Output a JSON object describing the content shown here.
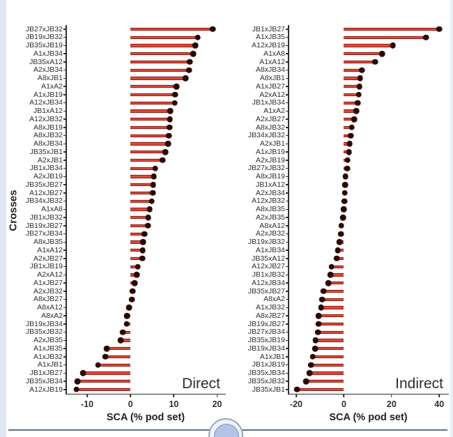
{
  "figure": {
    "ylabel": "Crosses",
    "colors": {
      "stem_red": "#dd4a3a",
      "stem_edge": "#8d1d13",
      "dot": "#1e0c0a",
      "axis": "#2e2e2e",
      "page_edge_blue": "#dfe9f4",
      "badge_fill": "#b3c3e6"
    }
  },
  "chart_data": [
    {
      "type": "bar",
      "variant": "lollipop-horizontal",
      "panel_label": "Direct",
      "xlabel": "SCA (% pod set)",
      "ylabel": "Crosses",
      "xlim": [
        -15,
        22
      ],
      "xticks": [
        -10,
        0,
        10,
        20
      ],
      "grid": false,
      "categories": [
        "JB27xJB32",
        "JB19xJB32",
        "JB35xJB19",
        "A1xJB34",
        "JB35xA12",
        "A2xJB34",
        "A8xJB1",
        "A1xA2",
        "A1xJB19",
        "A12xJB34",
        "JB1xA12",
        "A12xJB32",
        "A8xJB19",
        "A8xJB32",
        "A8xJB34",
        "JB35xJB1",
        "A2xJB1",
        "JB1xJB34",
        "A2xJB19",
        "JB35xJB27",
        "A12xJB27",
        "JB34xJB32",
        "A1xA8",
        "JB1xJB32",
        "JB19xJB27",
        "JB27xJB34",
        "A8xJB35",
        "A1xA12",
        "A2xJB27",
        "JB1xJB19",
        "A2xA12",
        "A1xJB27",
        "A2xJB32",
        "A8xJB27",
        "A8xA12",
        "A8xA2",
        "JB19xJB34",
        "JB35xJB32",
        "A2xJB35",
        "A1xJB35",
        "A1xJB32",
        "A1xJB1",
        "JB1xJB27",
        "JB35xJB34",
        "A12xJB19"
      ],
      "values": [
        19.0,
        15.5,
        15.0,
        14.5,
        13.7,
        13.5,
        12.7,
        10.6,
        10.3,
        10.2,
        9.2,
        9.1,
        9.0,
        8.8,
        8.7,
        8.0,
        7.4,
        5.7,
        5.4,
        5.2,
        5.1,
        4.9,
        4.4,
        4.1,
        4.0,
        3.2,
        2.9,
        2.8,
        2.7,
        1.7,
        1.4,
        1.0,
        0.5,
        0.3,
        -0.3,
        -0.8,
        -0.9,
        -1.8,
        -2.3,
        -5.5,
        -5.8,
        -7.5,
        -10.9,
        -12.2,
        -12.5
      ]
    },
    {
      "type": "bar",
      "variant": "lollipop-horizontal",
      "panel_label": "Indirect",
      "xlabel": "SCA (% pod set)",
      "ylabel": "Crosses",
      "xlim": [
        -23.5,
        44
      ],
      "xticks": [
        -20,
        0,
        20,
        40
      ],
      "grid": false,
      "categories": [
        "JB1xJB27",
        "A1xJB35",
        "A12xJB19",
        "A1xA8",
        "A1xA12",
        "A8xJB34",
        "A8xJB1",
        "A1xJB27",
        "A2xA12",
        "JB1xJB34",
        "A1xA2",
        "A2xJB27",
        "A8xJB32",
        "JB34xJB32",
        "A2xJB1",
        "A1xJB19",
        "A2xJB19",
        "JB27xJB32",
        "A8xJB19",
        "JB1xA12",
        "A2xJB34",
        "A12xJB32",
        "A8xJB35",
        "A2xJB35",
        "A8xA12",
        "A2xJB32",
        "JB19xJB32",
        "A1xJB34",
        "JB35xA12",
        "A12xJB27",
        "JB1xJB32",
        "A12xJB34",
        "JB35xJB27",
        "A8xA2",
        "A1xJB32",
        "A8xJB27",
        "JB19xJB27",
        "JB27xJB34",
        "JB35xJB19",
        "JB19xJB34",
        "A1xJB1",
        "JB1xJB19",
        "JB35xJB34",
        "JB35xJB32",
        "JB35xJB1"
      ],
      "values": [
        40.0,
        34.5,
        20.5,
        16.0,
        13.0,
        7.6,
        6.8,
        6.5,
        6.2,
        5.8,
        5.2,
        4.3,
        3.3,
        2.9,
        2.4,
        2.1,
        1.6,
        1.4,
        0.7,
        0.6,
        0.4,
        0.2,
        0.0,
        -0.4,
        -1.1,
        -1.3,
        -1.9,
        -2.6,
        -3.0,
        -5.2,
        -5.7,
        -6.5,
        -8.6,
        -9.2,
        -9.6,
        -10.6,
        -10.6,
        -10.9,
        -11.9,
        -12.1,
        -13.1,
        -13.8,
        -14.3,
        -15.8,
        -19.7
      ]
    }
  ]
}
